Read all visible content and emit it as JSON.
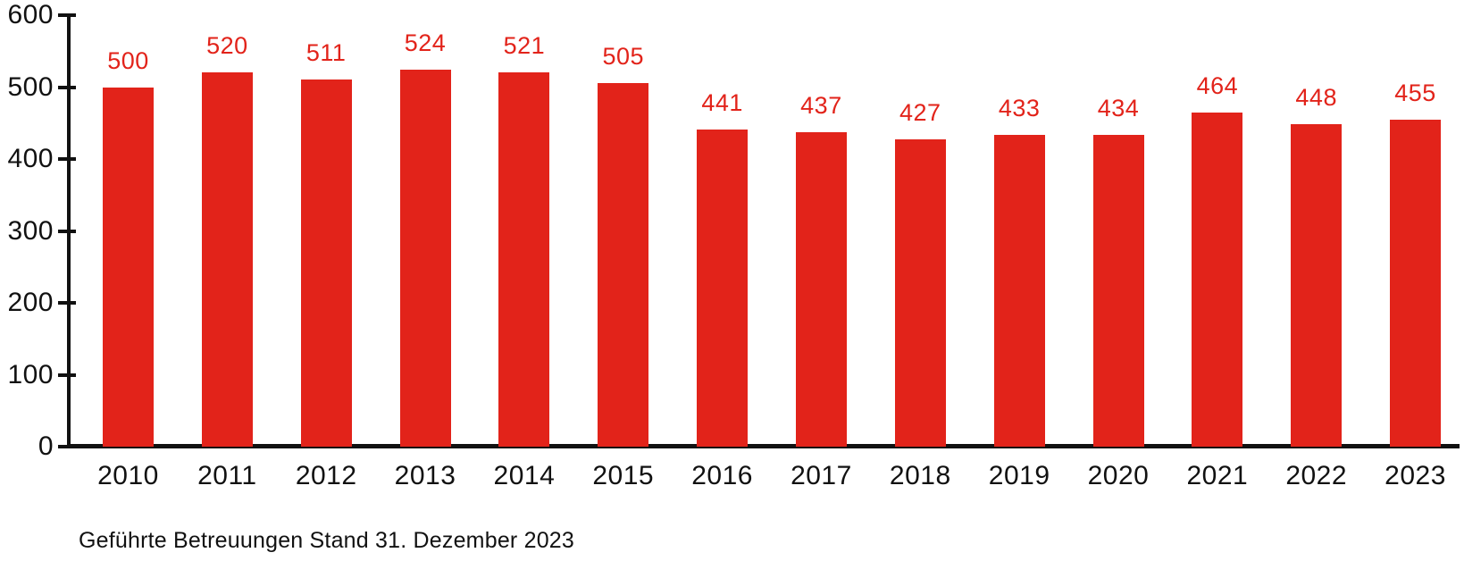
{
  "chart_data": {
    "type": "bar",
    "title": "",
    "xlabel": "",
    "ylabel": "",
    "categories": [
      "2010",
      "2011",
      "2012",
      "2013",
      "2014",
      "2015",
      "2016",
      "2017",
      "2018",
      "2019",
      "2020",
      "2021",
      "2022",
      "2023"
    ],
    "values": [
      500,
      520,
      511,
      524,
      521,
      505,
      441,
      437,
      427,
      433,
      434,
      464,
      448,
      455
    ],
    "ylim": [
      0,
      600
    ],
    "yticks": [
      0,
      100,
      200,
      300,
      400,
      500,
      600
    ],
    "grid": false,
    "legend_position": "none",
    "bar_color": "#e2231a",
    "value_label_color": "#e2231a",
    "axis_color": "#111111",
    "caption": "Geführte Betreuungen Stand 31. Dezember 2023"
  }
}
